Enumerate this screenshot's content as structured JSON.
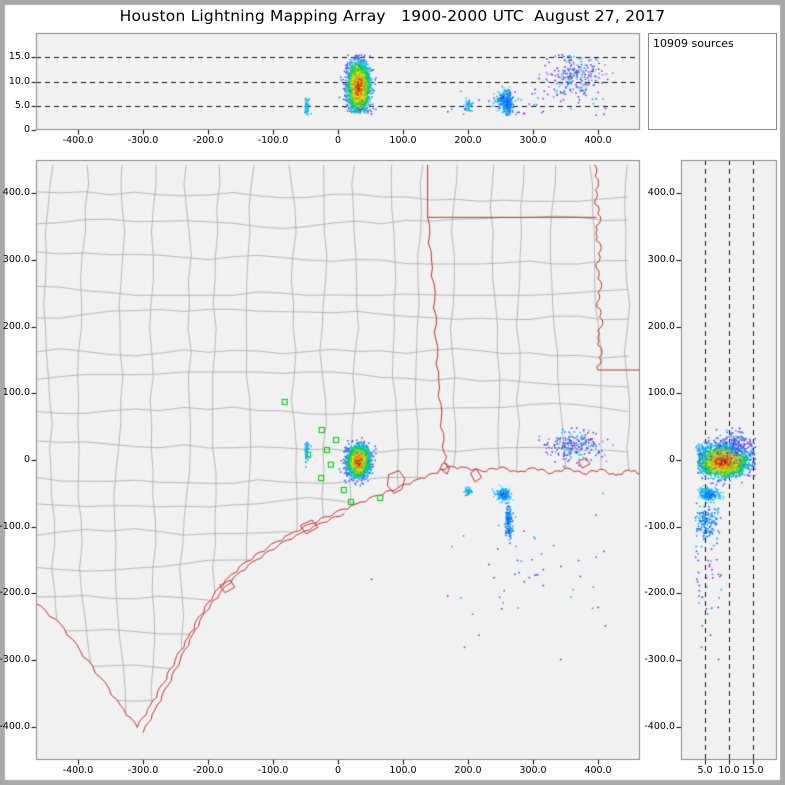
{
  "title": "Houston Lightning Mapping Array   1900-2000 UTC  August 27, 2017",
  "sources_label": "10909 sources",
  "total_sources": 10909,
  "colors": {
    "background": "#ffffff",
    "frame": "#a9a9a9",
    "panel_bg": "#f1f1f1",
    "panel_border": "#878787",
    "county_line": "#a9a9a9",
    "state_line": "#c43333",
    "station": "#00d400",
    "dashed_line": "#111111",
    "text": "#000000"
  },
  "chart_data": {
    "type": "scatter",
    "title": "Houston Lightning Mapping Array",
    "time_range_utc": "1900-2000 UTC",
    "date": "August 27, 2017",
    "panels": [
      {
        "id": "alt-vs-eastwest",
        "x_range_km": [
          -465,
          465
        ],
        "y_range_km": [
          0,
          20
        ]
      },
      {
        "id": "plan-view",
        "x_range_km": [
          -465,
          465
        ],
        "y_range_km": [
          -450,
          450
        ]
      },
      {
        "id": "alt-vs-northsouth",
        "x_range_km": [
          0,
          20
        ],
        "y_range_km": [
          -450,
          450
        ]
      }
    ],
    "axes": {
      "ew_ticks": {
        "values": [
          -400,
          -300,
          -200,
          -100,
          0,
          100,
          200,
          300,
          400
        ],
        "labels": [
          "-400.0",
          "-300.0",
          "-200.0",
          "-100.0",
          "0",
          "100.0",
          "200.0",
          "300.0",
          "400.0"
        ]
      },
      "ns_ticks": {
        "values": [
          400,
          300,
          200,
          100,
          0,
          -100,
          -200,
          -300,
          -400
        ],
        "labels": [
          "400.0",
          "300.0",
          "200.0",
          "100.0",
          "0",
          "-100.0",
          "-200.0",
          "-300.0",
          "-400.0"
        ]
      },
      "alt_ticks_left": {
        "values": [
          0,
          5,
          10,
          15
        ],
        "labels": [
          "0",
          "5.0",
          "10.0",
          "15.0"
        ]
      },
      "alt_ticks_bottom": {
        "values": [
          5,
          10,
          15
        ],
        "labels": [
          "5.0",
          "10.0",
          "15.0"
        ]
      }
    },
    "dashed_alt_km": [
      5,
      10,
      15
    ],
    "clusters": [
      {
        "name": "houston-storm",
        "center": [
          32,
          -2,
          8.8
        ],
        "spread": [
          8,
          11,
          2.4
        ],
        "count": 2600,
        "style": "radial",
        "z_clamp": [
          3.5,
          15.5
        ],
        "thresholds": [
          0.55,
          0.85,
          1.15,
          1.45,
          1.75,
          2.05,
          2.35,
          2.7
        ],
        "palette": [
          "#cc0000",
          "#ff2a00",
          "#ff9100",
          "#ffd700",
          "#a6e000",
          "#1fcc33",
          "#00c9a6",
          "#00bfff",
          "#3a56ff"
        ]
      },
      {
        "name": "west-streak",
        "center": [
          -48,
          12,
          4.8
        ],
        "spread": [
          1.5,
          9,
          0.9
        ],
        "count": 60,
        "style": "random",
        "z_clamp": [
          3,
          7
        ],
        "palette": [
          "#00c8ff",
          "#2fa8ff",
          "#00ace0"
        ]
      },
      {
        "name": "gulf-blob-small",
        "center": [
          200,
          -47,
          5.2
        ],
        "spread": [
          3,
          3,
          0.8
        ],
        "count": 40,
        "style": "random",
        "z_clamp": [
          3.5,
          7.5
        ],
        "palette": [
          "#00c8ff",
          "#2b8cff"
        ]
      },
      {
        "name": "gulf-blob-north",
        "center": [
          255,
          -52,
          6.0
        ],
        "spread": [
          6,
          5,
          1.3
        ],
        "count": 150,
        "style": "radial",
        "z_clamp": [
          3.5,
          9
        ],
        "thresholds": [
          0.9,
          1.6,
          2.3
        ],
        "palette": [
          "#0a50ff",
          "#0090ff",
          "#00bfff",
          "#49d6ff"
        ]
      },
      {
        "name": "gulf-streak-south",
        "center": [
          263,
          -92,
          5.4
        ],
        "spread": [
          3,
          13,
          1.4
        ],
        "count": 150,
        "style": "random",
        "z_clamp": [
          3,
          8.5
        ],
        "palette": [
          "#2255ff",
          "#0b87ff",
          "#00bfff"
        ]
      },
      {
        "name": "east-purple-cluster",
        "center": [
          366,
          22,
          11
        ],
        "spread": [
          20,
          11,
          2.3
        ],
        "count": 230,
        "style": "random",
        "z_clamp": [
          6,
          15.5
        ],
        "palette": [
          "#7a1fd0",
          "#5b33ee",
          "#9a6bff",
          "#00c8ff",
          "#3355ff"
        ]
      },
      {
        "name": "scattered-singles",
        "center": [
          300,
          -170,
          5.5
        ],
        "spread": [
          80,
          55,
          1.8
        ],
        "count": 50,
        "style": "random",
        "z_clamp": [
          3,
          9
        ],
        "palette": [
          "#7a1fd0",
          "#4646ff",
          "#00a5ff"
        ]
      }
    ],
    "stations_km": [
      [
        -82,
        87
      ],
      [
        -25,
        45
      ],
      [
        -17,
        15
      ],
      [
        -11,
        -7
      ],
      [
        -26,
        -27
      ],
      [
        9,
        -45
      ],
      [
        29,
        -22
      ],
      [
        65,
        -57
      ],
      [
        -46,
        8
      ],
      [
        -3,
        30
      ],
      [
        20,
        -63
      ]
    ],
    "map": {
      "coastline": [
        [
          -309,
          -401
        ],
        [
          -289,
          -368
        ],
        [
          -269,
          -335
        ],
        [
          -251,
          -301
        ],
        [
          -231,
          -266
        ],
        [
          -212,
          -233
        ],
        [
          -192,
          -203
        ],
        [
          -169,
          -176
        ],
        [
          -140,
          -152
        ],
        [
          -108,
          -131
        ],
        [
          -74,
          -111
        ],
        [
          -40,
          -95
        ],
        [
          -6,
          -80
        ],
        [
          28,
          -66
        ],
        [
          62,
          -53
        ],
        [
          92,
          -42
        ],
        [
          123,
          -29
        ],
        [
          149,
          -20
        ],
        [
          168,
          -11
        ],
        [
          195,
          -11
        ],
        [
          222,
          -17
        ],
        [
          249,
          -11
        ],
        [
          277,
          -18
        ],
        [
          303,
          -12
        ],
        [
          329,
          -20
        ],
        [
          354,
          -12
        ],
        [
          378,
          -21
        ],
        [
          403,
          -14
        ],
        [
          428,
          -23
        ],
        [
          449,
          -15
        ],
        [
          465,
          -20
        ]
      ],
      "rio_grande": [
        [
          -465,
          -215
        ],
        [
          -428,
          -245
        ],
        [
          -397,
          -286
        ],
        [
          -366,
          -326
        ],
        [
          -335,
          -368
        ],
        [
          -309,
          -401
        ]
      ],
      "barrier_island": [
        [
          -300,
          -409
        ],
        [
          -282,
          -375
        ],
        [
          -262,
          -338
        ],
        [
          -243,
          -300
        ],
        [
          -224,
          -262
        ],
        [
          -204,
          -228
        ],
        [
          -182,
          -200
        ],
        [
          -156,
          -172
        ],
        [
          -126,
          -150
        ],
        [
          -92,
          -128
        ],
        [
          -58,
          -110
        ],
        [
          -24,
          -94
        ],
        [
          10,
          -80
        ]
      ],
      "state_borders": [
        {
          "name": "tx-ar-line",
          "wiggle": 0,
          "points": [
            [
              138,
              443
            ],
            [
              138,
              364
            ]
          ]
        },
        {
          "name": "ar-la-33n",
          "wiggle": 0,
          "points": [
            [
              138,
              364
            ],
            [
              398,
              364
            ]
          ]
        },
        {
          "name": "tx-la-sabine",
          "wiggle": 1.6,
          "points": [
            [
              138,
              364
            ],
            [
              144,
              300
            ],
            [
              149,
              240
            ],
            [
              151,
              180
            ],
            [
              155,
              120
            ],
            [
              159,
              60
            ],
            [
              164,
              10
            ],
            [
              168,
              -11
            ]
          ]
        },
        {
          "name": "mississippi-river",
          "wiggle": 1.8,
          "points": [
            [
              395,
              443
            ],
            [
              401,
              415
            ],
            [
              396,
              390
            ],
            [
              404,
              365
            ],
            [
              397,
              340
            ],
            [
              405,
              315
            ],
            [
              398,
              288
            ],
            [
              406,
              262
            ],
            [
              399,
              236
            ],
            [
              407,
              210
            ],
            [
              400,
              184
            ],
            [
              406,
              158
            ],
            [
              400,
              135
            ]
          ]
        },
        {
          "name": "la-ms-31n",
          "wiggle": 0,
          "points": [
            [
              400,
              135
            ],
            [
              465,
              135
            ]
          ]
        }
      ],
      "bays": [
        {
          "name": "galveston-bay",
          "points": [
            [
              78,
              -22
            ],
            [
              94,
              -16
            ],
            [
              103,
              -28
            ],
            [
              98,
              -44
            ],
            [
              86,
              -50
            ],
            [
              76,
              -38
            ]
          ]
        },
        {
          "name": "matagorda-bay",
          "points": [
            [
              -58,
              -98
            ],
            [
              -40,
              -90
            ],
            [
              -31,
              -101
            ],
            [
              -49,
              -111
            ]
          ]
        },
        {
          "name": "corpus-christi-bay",
          "points": [
            [
              -182,
              -188
            ],
            [
              -166,
              -180
            ],
            [
              -159,
              -191
            ],
            [
              -174,
              -199
            ]
          ]
        },
        {
          "name": "sabine-lake",
          "points": [
            [
              162,
              -4
            ],
            [
              172,
              -10
            ],
            [
              168,
              -21
            ],
            [
              157,
              -13
            ]
          ]
        },
        {
          "name": "calcasieu-lake",
          "points": [
            [
              213,
              -13
            ],
            [
              221,
              -26
            ],
            [
              211,
              -33
            ],
            [
              204,
              -20
            ]
          ]
        },
        {
          "name": "la-lake",
          "points": [
            [
              370,
              -2
            ],
            [
              382,
              3
            ],
            [
              388,
              -6
            ],
            [
              376,
              -12
            ]
          ]
        }
      ],
      "county_grid": {
        "spacing_x_km": 52,
        "spacing_y_km": 47
      }
    }
  }
}
